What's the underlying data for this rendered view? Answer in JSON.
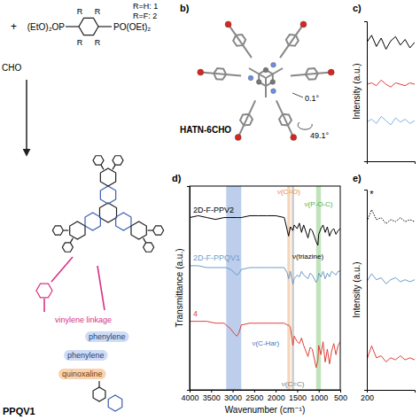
{
  "scheme": {
    "plus": "+",
    "reagent_left": "(EtO)₂OP",
    "reagent_right": "PO(OEt)₂",
    "substituent": "R",
    "legend_1": "R=H: 1",
    "legend_2": "R=F: 2",
    "aldehyde": "CHO",
    "labels": [
      "vinylene linkage",
      "phenylene",
      "phenylene",
      "quinoxaline"
    ],
    "product": "PPQV1"
  },
  "panel_b": {
    "label": "b)",
    "molecule": "HATN-6CHO",
    "angles": [
      "0.1°",
      "49.1°"
    ]
  },
  "chart_data": [
    {
      "type": "line",
      "label": "d)",
      "x_label": "Wavenumber (cm⁻¹)",
      "y_label": "Transmittance (a.u.)",
      "x": [
        4000,
        3800,
        3600,
        3400,
        3200,
        3150,
        3050,
        2950,
        2900,
        2850,
        2800,
        2600,
        2400,
        2200,
        2000,
        1800,
        1730,
        1700,
        1660,
        1600,
        1570,
        1500,
        1450,
        1400,
        1350,
        1250,
        1200,
        1150,
        1060,
        1020,
        1000,
        950,
        900,
        850,
        800,
        750,
        700,
        650,
        600,
        550,
        500
      ],
      "xlim": [
        4000,
        500
      ],
      "xticks": [
        4000,
        3500,
        3000,
        2500,
        2000,
        1500,
        1000,
        500
      ],
      "ylim": [
        0,
        11
      ],
      "tick_labels": "x",
      "series": [
        {
          "name": "2D-F-PPV2",
          "color": "#000000",
          "values": [
            9.3,
            9.4,
            9.3,
            9.2,
            9.3,
            9.3,
            9.3,
            9.3,
            9.3,
            9.3,
            9.3,
            9.4,
            9.4,
            9.4,
            9.4,
            9.3,
            8.6,
            8.3,
            8.8,
            8.6,
            8.9,
            8.7,
            9.0,
            8.5,
            8.9,
            8.2,
            8.7,
            8.6,
            8.0,
            7.8,
            8.4,
            8.7,
            8.9,
            8.5,
            8.8,
            8.3,
            8.6,
            8.7,
            8.4,
            8.6,
            8.7
          ]
        },
        {
          "name": "2D-F-PPQV1",
          "color": "#6f9bc9",
          "values": [
            6.7,
            6.7,
            6.6,
            6.6,
            6.6,
            6.6,
            6.5,
            6.3,
            6.2,
            6.3,
            6.5,
            6.6,
            6.6,
            6.6,
            6.6,
            6.6,
            6.3,
            6.0,
            6.4,
            5.7,
            6.0,
            6.2,
            6.1,
            6.4,
            6.2,
            6.0,
            6.3,
            6.2,
            5.8,
            6.0,
            6.3,
            6.1,
            6.4,
            6.0,
            6.3,
            6.1,
            6.4,
            6.3,
            6.2,
            6.4,
            6.4
          ]
        },
        {
          "name": "4",
          "color": "#e0403a",
          "values": [
            3.7,
            3.7,
            3.7,
            3.6,
            3.6,
            3.5,
            3.3,
            3.0,
            2.9,
            3.1,
            3.5,
            3.6,
            3.6,
            3.6,
            3.6,
            3.6,
            3.5,
            3.5,
            3.4,
            2.4,
            2.9,
            2.6,
            2.5,
            2.8,
            2.4,
            1.8,
            2.3,
            2.2,
            1.2,
            1.6,
            2.4,
            1.9,
            2.6,
            1.5,
            2.2,
            1.4,
            2.1,
            2.5,
            1.9,
            2.4,
            2.6
          ]
        }
      ],
      "annotations": [
        {
          "text": "ν(C-Har)",
          "x_range": [
            3150,
            2800
          ],
          "color": "#3f73c8"
        },
        {
          "text": "ν(C=O)",
          "x_range": [
            1730,
            1660
          ],
          "color": "#e8893a"
        },
        {
          "text": "ν(C=C)",
          "x_range": [
            1630,
            1570
          ],
          "color": "#7a7a7a"
        },
        {
          "text": "ν(P-O-C)",
          "x_range": [
            1060,
            950
          ],
          "color": "#4caf3e"
        },
        {
          "text": "ν(triazine)",
          "x": 1250
        }
      ]
    },
    {
      "type": "line",
      "label": "c)",
      "y_label": "Intensity (a.u.)",
      "x": [
        0,
        1,
        2,
        3,
        4,
        5,
        6,
        7,
        8,
        9,
        10
      ],
      "xlim": [
        0,
        10
      ],
      "ylim": [
        0,
        10
      ],
      "tick_labels": false,
      "series": [
        {
          "color": "#000000",
          "values": [
            8.5,
            9.0,
            8.2,
            8.8,
            8.0,
            8.6,
            8.9,
            8.3,
            8.7,
            8.1,
            8.5
          ]
        },
        {
          "color": "#e23b3b",
          "values": [
            5.5,
            5.6,
            5.4,
            5.8,
            5.5,
            5.3,
            5.6,
            5.5,
            5.4,
            5.6,
            5.5
          ]
        },
        {
          "color": "#7fb2e5",
          "values": [
            2.8,
            3.0,
            2.7,
            3.2,
            2.9,
            2.6,
            3.1,
            2.8,
            3.0,
            2.7,
            2.9
          ]
        }
      ]
    },
    {
      "type": "line",
      "label": "e)",
      "y_label": "Intensity (a.u.)",
      "x": [
        200,
        230,
        260,
        290,
        320,
        350,
        380,
        410,
        440,
        470,
        500
      ],
      "xlim": [
        200,
        500
      ],
      "xticks": [
        200
      ],
      "ylim": [
        0,
        10
      ],
      "tick_labels": "x",
      "series": [
        {
          "color": "#000000",
          "line_style": "dotted",
          "values": [
            8.4,
            9.0,
            8.5,
            8.6,
            8.3,
            8.5,
            8.4,
            8.6,
            8.4,
            8.5,
            8.4
          ]
        },
        {
          "color": "#6f9bc9",
          "values": [
            5.4,
            5.8,
            5.5,
            5.6,
            5.3,
            5.5,
            5.6,
            5.4,
            5.5,
            5.4,
            5.5
          ]
        },
        {
          "color": "#e0403a",
          "values": [
            1.5,
            2.2,
            1.6,
            1.7,
            1.4,
            1.6,
            1.5,
            1.7,
            1.5,
            1.6,
            1.5
          ]
        }
      ],
      "annotations": [
        {
          "text": "*",
          "x": 230,
          "y": 9.6
        }
      ]
    }
  ]
}
